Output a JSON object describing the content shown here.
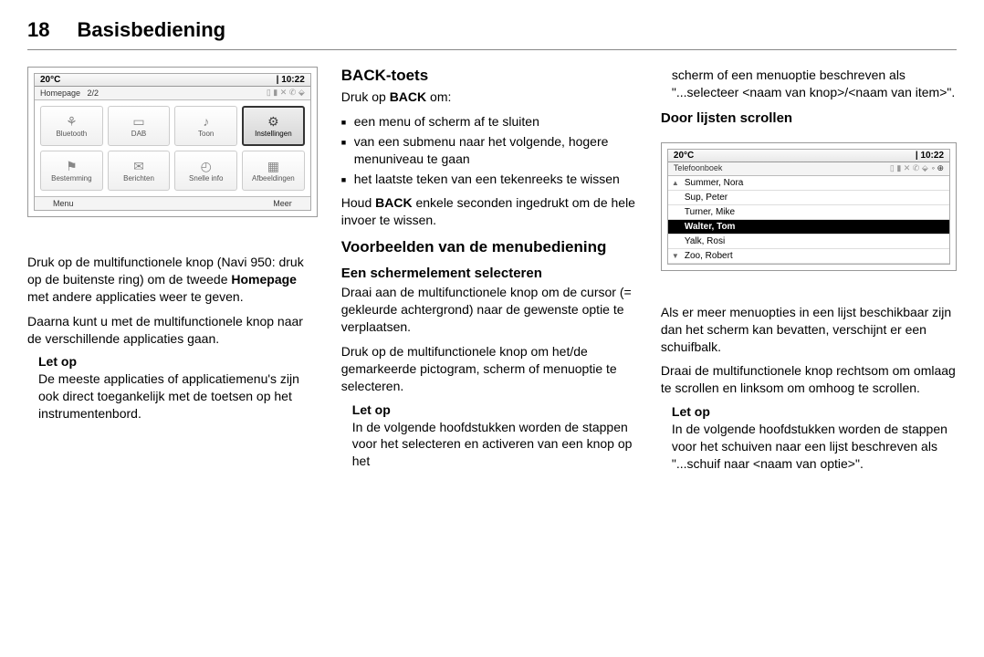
{
  "header": {
    "page_num": "18",
    "title": "Basisbediening"
  },
  "col1": {
    "scr": {
      "temp": "20°C",
      "time": "10:22",
      "subtitle_left": "Homepage",
      "subtitle_mid": "2/2",
      "tiles": [
        {
          "icon": "⚘",
          "label": "Bluetooth"
        },
        {
          "icon": "▭",
          "label": "DAB"
        },
        {
          "icon": "♪",
          "label": "Toon"
        },
        {
          "icon": "⚙",
          "label": "Instellingen",
          "selected": true
        },
        {
          "icon": "⚑",
          "label": "Bestemming"
        },
        {
          "icon": "✉",
          "label": "Berichten"
        },
        {
          "icon": "◴",
          "label": "Snelle info"
        },
        {
          "icon": "▦",
          "label": "Afbeeldingen"
        }
      ],
      "bot_left": "Menu",
      "bot_right": "Meer"
    },
    "p1_pre": "Druk op de multifunctionele knop (Navi 950: druk op de buitenste ring) om de tweede ",
    "p1_bold": "Homepage",
    "p1_post": " met andere applicaties weer te geven.",
    "p2": "Daarna kunt u met de multifunctionele knop naar de verschillende applicaties gaan.",
    "note": {
      "title": "Let op",
      "body": "De meeste applicaties of applicatiemenu's zijn ook direct toegankelijk met de toetsen op het instrumentenbord."
    }
  },
  "col2": {
    "h_back": "BACK-toets",
    "back_intro_pre": "Druk op ",
    "back_intro_bold": "BACK",
    "back_intro_post": " om:",
    "back_list": [
      "een menu of scherm af te sluiten",
      "van een submenu naar het volgende, hogere menuniveau te gaan",
      "het laatste teken van een tekenreeks te wissen"
    ],
    "back_hold_pre": "Houd ",
    "back_hold_bold": "BACK",
    "back_hold_post": " enkele seconden ingedrukt om de hele invoer te wissen.",
    "h_voorb": "Voorbeelden van de menubediening",
    "h_select": "Een schermelement selecteren",
    "sel_p1": "Draai aan de multifunctionele knop om de cursor (= gekleurde achtergrond) naar de gewenste optie te verplaatsen.",
    "sel_p2": "Druk op de multifunctionele knop om het/de gemarkeerde pictogram, scherm of menuoptie te selecteren.",
    "note": {
      "title": "Let op",
      "body": "In de volgende hoofdstukken worden de stappen voor het selecteren en activeren van een knop op het"
    }
  },
  "col3": {
    "cont": "scherm of een menuoptie beschreven als \"...selecteer <naam van knop>/<naam van item>\".",
    "h_scroll": "Door lijsten scrollen",
    "scr": {
      "temp": "20°C",
      "time": "10:22",
      "subtitle_left": "Telefoonboek",
      "rows": [
        {
          "arrow": "▲",
          "name": "Summer, Nora"
        },
        {
          "arrow": "",
          "name": "Sup, Peter"
        },
        {
          "arrow": "",
          "name": "Turner, Mike"
        },
        {
          "arrow": "",
          "name": "Walter, Tom",
          "selected": true
        },
        {
          "arrow": "",
          "name": "Yalk, Rosi"
        },
        {
          "arrow": "▼",
          "name": "Zoo, Robert"
        }
      ]
    },
    "p1": "Als er meer menuopties in een lijst beschikbaar zijn dan het scherm kan bevatten, verschijnt er een schuifbalk.",
    "p2": "Draai de multifunctionele knop rechtsom om omlaag te scrollen en linksom om omhoog te scrollen.",
    "note": {
      "title": "Let op",
      "body": "In de volgende hoofdstukken worden de stappen voor het schuiven naar een lijst beschreven als \"...schuif naar <naam van optie>\"."
    }
  }
}
